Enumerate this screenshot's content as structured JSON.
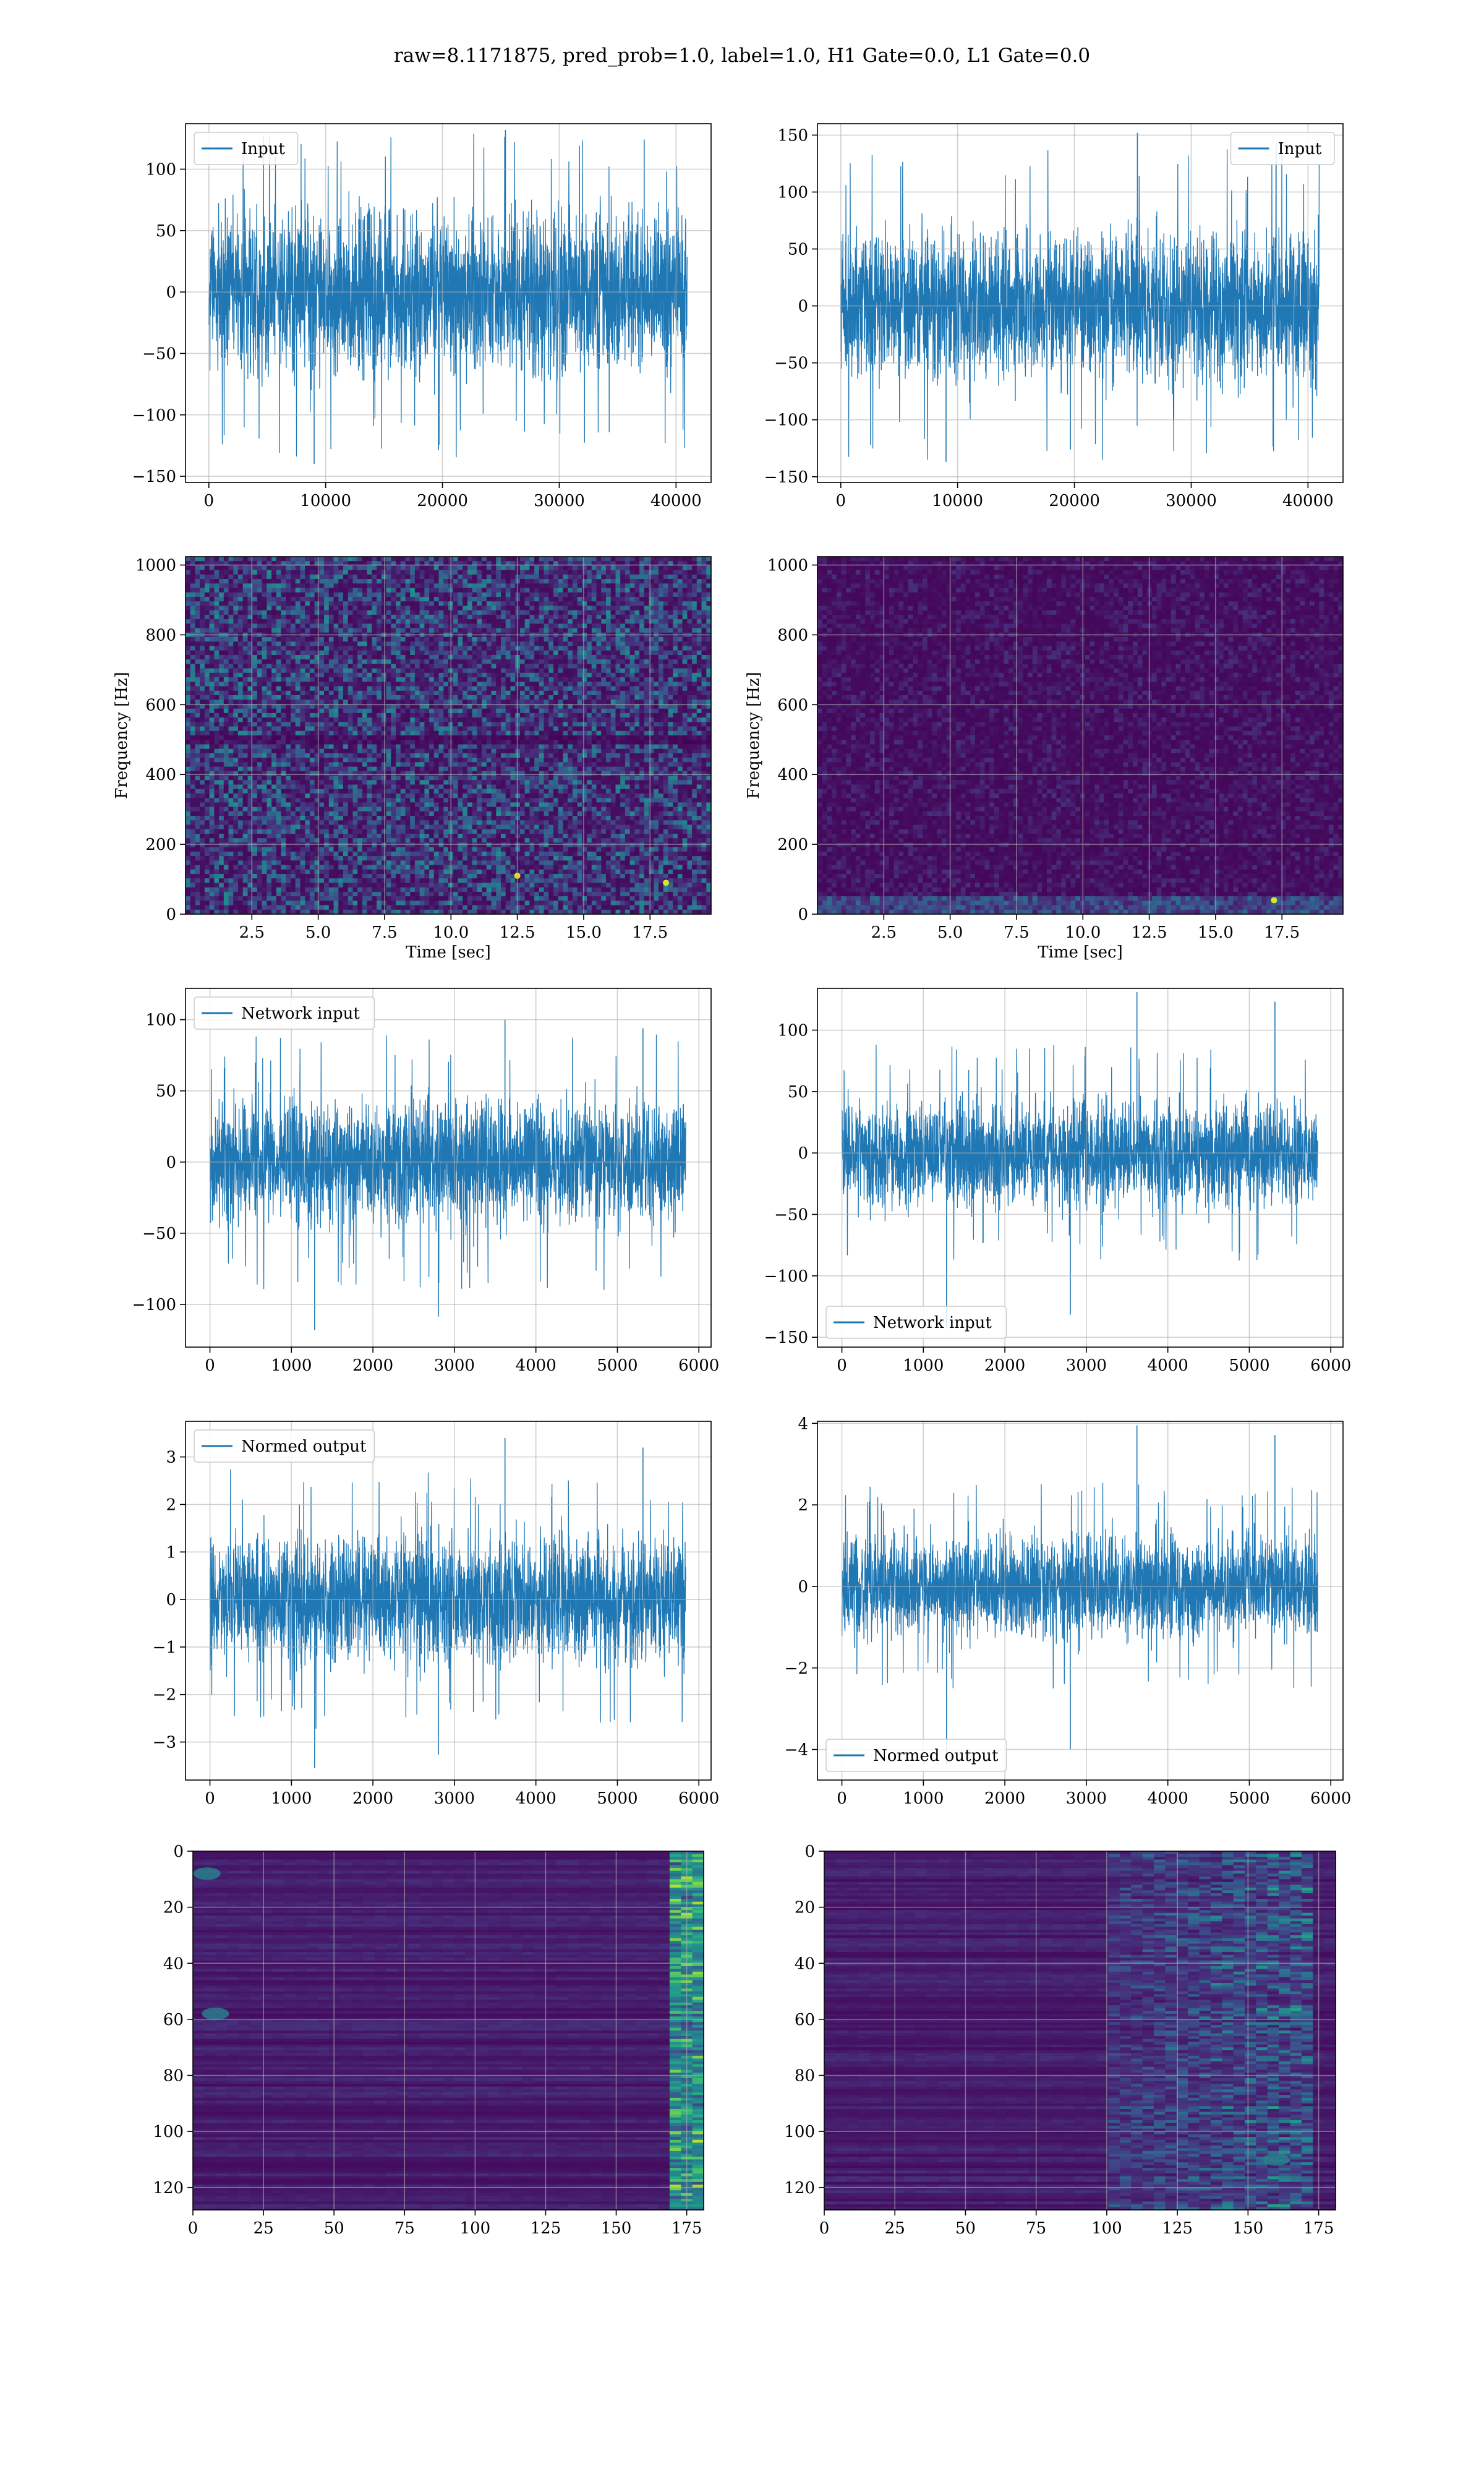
{
  "figure": {
    "suptitle": "raw=8.1171875, pred_prob=1.0, label=1.0, H1 Gate=0.0, L1 Gate=0.0",
    "colors": {
      "line": "#1f77b4",
      "grid": "#b0b0b0",
      "heat_low": "#440154",
      "heat_high": "#fde725"
    }
  },
  "chart_data": [
    {
      "id": "input-h1",
      "type": "line",
      "title": "",
      "xlabel": "",
      "ylabel": "",
      "legend": {
        "label": "Input",
        "loc": "upper left"
      },
      "x": {
        "min": 0,
        "max": 40959
      },
      "xlim": [
        -2000,
        43000
      ],
      "ylim": [
        -155,
        137
      ],
      "xticks": [
        0,
        10000,
        20000,
        30000,
        40000
      ],
      "xticklabels": [
        "0",
        "10000",
        "20000",
        "30000",
        "40000"
      ],
      "yticks": [
        -150,
        -100,
        -50,
        0,
        50,
        100
      ],
      "yticklabels": [
        "−150",
        "−100",
        "−50",
        "0",
        "50",
        "100"
      ],
      "envelope": {
        "bulk": 93,
        "max": 132,
        "min": -140
      }
    },
    {
      "id": "input-l1",
      "type": "line",
      "title": "",
      "xlabel": "",
      "ylabel": "",
      "legend": {
        "label": "Input",
        "loc": "upper right"
      },
      "x": {
        "min": 0,
        "max": 40959
      },
      "xlim": [
        -2000,
        43000
      ],
      "ylim": [
        -155,
        160
      ],
      "xticks": [
        0,
        10000,
        20000,
        30000,
        40000
      ],
      "xticklabels": [
        "0",
        "10000",
        "20000",
        "30000",
        "40000"
      ],
      "yticks": [
        -150,
        -100,
        -50,
        0,
        50,
        100,
        150
      ],
      "yticklabels": [
        "−150",
        "−100",
        "−50",
        "0",
        "50",
        "100",
        "150"
      ],
      "envelope": {
        "bulk": 95,
        "max": 152,
        "min": -137
      }
    },
    {
      "id": "spec-h1",
      "type": "heatmap",
      "title": "",
      "xlabel": "Time [sec]",
      "ylabel": "Frequency [Hz]",
      "xlim": [
        0,
        19.8
      ],
      "ylim": [
        0,
        1024
      ],
      "xticks": [
        2.5,
        5.0,
        7.5,
        10.0,
        12.5,
        15.0,
        17.5
      ],
      "xticklabels": [
        "2.5",
        "5.0",
        "7.5",
        "10.0",
        "12.5",
        "15.0",
        "17.5"
      ],
      "yticks": [
        0,
        200,
        400,
        600,
        800,
        1000
      ],
      "yticklabels": [
        "0",
        "200",
        "400",
        "600",
        "800",
        "1000"
      ],
      "colormap": "viridis",
      "texture": "speckled",
      "features": [
        {
          "kind": "dark-band",
          "freq_hz": 500
        },
        {
          "kind": "hot-spot",
          "time_s": 12.5,
          "freq_hz": 110
        },
        {
          "kind": "hot-spot",
          "time_s": 18.1,
          "freq_hz": 90
        }
      ]
    },
    {
      "id": "spec-l1",
      "type": "heatmap",
      "title": "",
      "xlabel": "Time [sec]",
      "ylabel": "Frequency [Hz]",
      "xlim": [
        0,
        19.8
      ],
      "ylim": [
        0,
        1024
      ],
      "xticks": [
        2.5,
        5.0,
        7.5,
        10.0,
        12.5,
        15.0,
        17.5
      ],
      "xticklabels": [
        "2.5",
        "5.0",
        "7.5",
        "10.0",
        "12.5",
        "15.0",
        "17.5"
      ],
      "yticks": [
        0,
        200,
        400,
        600,
        800,
        1000
      ],
      "yticklabels": [
        "0",
        "200",
        "400",
        "600",
        "800",
        "1000"
      ],
      "colormap": "viridis",
      "texture": "dark-with-low-frequency-band",
      "features": [
        {
          "kind": "low-band",
          "freq_hz": 25
        },
        {
          "kind": "hot-spot",
          "time_s": 17.2,
          "freq_hz": 40
        }
      ]
    },
    {
      "id": "netin-h1",
      "type": "line",
      "title": "",
      "xlabel": "",
      "ylabel": "",
      "legend": {
        "label": "Network input",
        "loc": "upper left"
      },
      "x": {
        "min": 0,
        "max": 5840
      },
      "xlim": [
        -300,
        6150
      ],
      "ylim": [
        -130,
        122
      ],
      "xticks": [
        0,
        1000,
        2000,
        3000,
        4000,
        5000,
        6000
      ],
      "xticklabels": [
        "0",
        "1000",
        "2000",
        "3000",
        "4000",
        "5000",
        "6000"
      ],
      "yticks": [
        -100,
        -50,
        0,
        50,
        100
      ],
      "yticklabels": [
        "−100",
        "−50",
        "0",
        "50",
        "100"
      ],
      "envelope": {
        "bulk": 62,
        "max": 100,
        "min": -118
      }
    },
    {
      "id": "netin-l1",
      "type": "line",
      "title": "",
      "xlabel": "",
      "ylabel": "",
      "legend": {
        "label": "Network input",
        "loc": "lower left"
      },
      "x": {
        "min": 0,
        "max": 5840
      },
      "xlim": [
        -300,
        6150
      ],
      "ylim": [
        -158,
        134
      ],
      "xticks": [
        0,
        1000,
        2000,
        3000,
        4000,
        5000,
        6000
      ],
      "xticklabels": [
        "0",
        "1000",
        "2000",
        "3000",
        "4000",
        "5000",
        "6000"
      ],
      "yticks": [
        -150,
        -100,
        -50,
        0,
        50,
        100
      ],
      "yticklabels": [
        "−150",
        "−100",
        "−50",
        "0",
        "50",
        "100"
      ],
      "envelope": {
        "bulk": 62,
        "max": 131,
        "min": -143
      }
    },
    {
      "id": "norm-h1",
      "type": "line",
      "title": "",
      "xlabel": "",
      "ylabel": "",
      "legend": {
        "label": "Normed output",
        "loc": "upper left"
      },
      "x": {
        "min": 0,
        "max": 5840
      },
      "xlim": [
        -300,
        6150
      ],
      "ylim": [
        -3.8,
        3.75
      ],
      "xticks": [
        0,
        1000,
        2000,
        3000,
        4000,
        5000,
        6000
      ],
      "xticklabels": [
        "0",
        "1000",
        "2000",
        "3000",
        "4000",
        "5000",
        "6000"
      ],
      "yticks": [
        -3,
        -2,
        -1,
        0,
        1,
        2,
        3
      ],
      "yticklabels": [
        "−3",
        "−2",
        "−1",
        "0",
        "1",
        "2",
        "3"
      ],
      "envelope": {
        "bulk": 1.9,
        "max": 3.4,
        "min": -3.55
      }
    },
    {
      "id": "norm-l1",
      "type": "line",
      "title": "",
      "xlabel": "",
      "ylabel": "",
      "legend": {
        "label": "Normed output",
        "loc": "lower left"
      },
      "x": {
        "min": 0,
        "max": 5840
      },
      "xlim": [
        -300,
        6150
      ],
      "ylim": [
        -4.75,
        4.05
      ],
      "xticks": [
        0,
        1000,
        2000,
        3000,
        4000,
        5000,
        6000
      ],
      "xticklabels": [
        "0",
        "1000",
        "2000",
        "3000",
        "4000",
        "5000",
        "6000"
      ],
      "yticks": [
        -4,
        -2,
        0,
        2,
        4
      ],
      "yticklabels": [
        "−4",
        "−2",
        "0",
        "2",
        "4"
      ],
      "envelope": {
        "bulk": 1.75,
        "max": 3.95,
        "min": -4.35
      }
    },
    {
      "id": "feat-h1",
      "type": "heatmap",
      "title": "",
      "xlabel": "",
      "ylabel": "",
      "xlim": [
        0,
        181
      ],
      "ylim": [
        128,
        0
      ],
      "rows": 128,
      "cols": 181,
      "xticks": [
        0,
        25,
        50,
        75,
        100,
        125,
        150,
        175
      ],
      "xticklabels": [
        "0",
        "25",
        "50",
        "75",
        "100",
        "125",
        "150",
        "175"
      ],
      "yticks": [
        0,
        20,
        40,
        60,
        80,
        100,
        120
      ],
      "yticklabels": [
        "0",
        "20",
        "40",
        "60",
        "80",
        "100",
        "120"
      ],
      "colormap": "viridis",
      "texture": "horizontal-stripes",
      "features": [
        {
          "kind": "bright-columns",
          "col_from": 168,
          "col_to": 181
        },
        {
          "kind": "blob",
          "row": 58,
          "col": 8
        },
        {
          "kind": "blob",
          "row": 8,
          "col": 5
        }
      ]
    },
    {
      "id": "feat-l1",
      "type": "heatmap",
      "title": "",
      "xlabel": "",
      "ylabel": "",
      "xlim": [
        0,
        181
      ],
      "ylim": [
        128,
        0
      ],
      "rows": 128,
      "cols": 181,
      "xticks": [
        0,
        25,
        50,
        75,
        100,
        125,
        150,
        175
      ],
      "xticklabels": [
        "0",
        "25",
        "50",
        "75",
        "100",
        "125",
        "150",
        "175"
      ],
      "yticks": [
        0,
        20,
        40,
        60,
        80,
        100,
        120
      ],
      "yticklabels": [
        "0",
        "20",
        "40",
        "60",
        "80",
        "100",
        "120"
      ],
      "colormap": "viridis",
      "texture": "horizontal-stripes",
      "features": [
        {
          "kind": "bright-columns",
          "col_from": 100,
          "col_to": 172
        },
        {
          "kind": "blob",
          "row": 110,
          "col": 160
        }
      ]
    }
  ]
}
